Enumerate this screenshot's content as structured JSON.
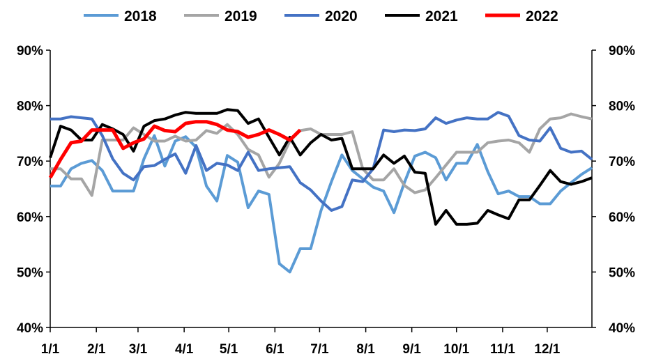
{
  "chart_data": {
    "type": "line",
    "title": "",
    "xlabel": "",
    "ylabel": "",
    "ylim": [
      40,
      90
    ],
    "y_ticks": [
      "40%",
      "50%",
      "60%",
      "70%",
      "80%",
      "90%"
    ],
    "y_right_ticks": [
      "40%",
      "50%",
      "60%",
      "70%",
      "80%",
      "90%"
    ],
    "x_ticks": [
      "1/1",
      "2/1",
      "3/1",
      "4/1",
      "5/1",
      "6/1",
      "7/1",
      "8/1",
      "9/1",
      "10/1",
      "11/1",
      "12/1"
    ],
    "x_tick_weeks": [
      0,
      4.43,
      8.43,
      12.86,
      17.14,
      21.57,
      25.86,
      30.29,
      34.71,
      39,
      43.43,
      47.71
    ],
    "x_range_weeks": [
      0,
      52
    ],
    "legend_position": "top",
    "series": [
      {
        "name": "2018",
        "color": "#5b9bd5",
        "values": [
          65.5,
          65.5,
          68.6,
          69.6,
          70.1,
          68.3,
          64.6,
          64.6,
          64.6,
          70.4,
          74.6,
          69.1,
          73.6,
          74.4,
          72.5,
          65.5,
          62.8,
          71,
          69.8,
          61.6,
          64.6,
          64,
          51.5,
          50,
          54.2,
          54.2,
          61.1,
          66.3,
          71.1,
          68.3,
          66.8,
          65.3,
          64.6,
          60.7,
          66.1,
          70.9,
          71.6,
          70.6,
          66.6,
          69.6,
          69.6,
          73,
          68.1,
          64.1,
          64.6,
          63.6,
          63.6,
          62.3,
          62.3,
          64.6,
          66.1,
          67.6,
          68.8
        ]
      },
      {
        "name": "2019",
        "color": "#a5a5a5",
        "values": [
          68.6,
          68.6,
          66.8,
          66.8,
          63.8,
          73.8,
          73.8,
          73.8,
          76,
          74.8,
          73.6,
          73.6,
          74.5,
          73.6,
          73.8,
          75.5,
          75,
          76.6,
          74.8,
          72.1,
          71.1,
          67.1,
          69.6,
          73.6,
          75.5,
          75.8,
          74.8,
          74.8,
          74.8,
          75.3,
          68.6,
          66.6,
          66.6,
          68.6,
          65.6,
          64.3,
          64.8,
          67,
          69.3,
          71.6,
          71.6,
          71.6,
          73.3,
          73.6,
          73.8,
          73.3,
          71.6,
          75.8,
          77.6,
          77.8,
          78.5,
          78,
          77.6
        ]
      },
      {
        "name": "2020",
        "color": "#4472c4",
        "values": [
          77.6,
          77.6,
          78,
          77.8,
          77.6,
          74.6,
          70.4,
          67.8,
          66.6,
          69,
          69.2,
          70.3,
          71.3,
          67.8,
          72.8,
          68.3,
          69.6,
          69.3,
          68.3,
          71.6,
          68.3,
          68.6,
          68.8,
          69,
          66.1,
          64.8,
          62.8,
          61.1,
          61.8,
          66.6,
          66.3,
          68.6,
          75.6,
          75.3,
          75.6,
          75.5,
          75.8,
          77.8,
          76.8,
          77.4,
          77.8,
          77.6,
          77.6,
          78.8,
          78.1,
          74.6,
          73.8,
          73.6,
          76,
          72.3,
          71.6,
          71.8,
          70.3
        ]
      },
      {
        "name": "2021",
        "color": "#000000",
        "values": [
          70.6,
          76.3,
          75.6,
          73.8,
          73.8,
          76.6,
          75.8,
          74.8,
          71.8,
          76.3,
          77.3,
          77.6,
          78.3,
          78.8,
          78.6,
          78.6,
          78.6,
          79.3,
          79.1,
          76.8,
          77.6,
          74.3,
          71.1,
          74.3,
          71.1,
          73.3,
          74.8,
          73.8,
          74.1,
          68.6,
          68.6,
          68.6,
          71.1,
          69.6,
          70.9,
          68,
          67.8,
          58.6,
          61.1,
          58.6,
          58.6,
          58.8,
          61.1,
          60.3,
          59.6,
          63,
          63,
          65.6,
          68.3,
          66.3,
          65.8,
          66.3,
          67
        ]
      },
      {
        "name": "2022",
        "color": "#ff0000",
        "values": [
          67,
          70.3,
          73.3,
          73.6,
          75.6,
          75.6,
          75.6,
          72.3,
          73.3,
          74,
          76.3,
          75.5,
          75.3,
          76.8,
          77.1,
          77.1,
          76.6,
          75.6,
          75.3,
          74.3,
          74.8,
          75.6,
          74.8,
          73.8,
          75.6
        ]
      }
    ]
  }
}
